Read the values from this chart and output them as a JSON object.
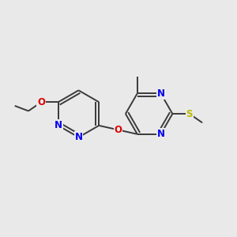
{
  "background_color": "#e9e9e9",
  "bond_color": "#3a3a3a",
  "N_color": "#0000ee",
  "O_color": "#dd0000",
  "S_color": "#bbbb00",
  "font_size": 8.5,
  "linewidth": 1.4,
  "figsize": [
    3.0,
    3.0
  ],
  "dpi": 100,
  "xlim": [
    0,
    10
  ],
  "ylim": [
    0,
    10
  ]
}
